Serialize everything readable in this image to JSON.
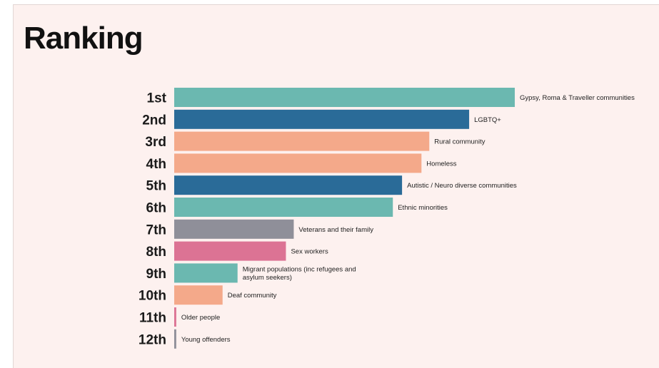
{
  "title": "Ranking",
  "chart_data": {
    "type": "bar",
    "orientation": "horizontal",
    "title": "Ranking",
    "xlabel": "",
    "ylabel": "",
    "grid": false,
    "xlim": [
      0,
      100
    ],
    "ranks": [
      "1st",
      "2nd",
      "3rd",
      "4th",
      "5th",
      "6th",
      "7th",
      "8th",
      "9th",
      "10th",
      "11th",
      "12th"
    ],
    "bars": [
      {
        "rank": "1st",
        "category": [
          "Gypsy, Roma & Traveller communities"
        ],
        "value": 100,
        "color": "#6bb8b0"
      },
      {
        "rank": "2nd",
        "category": [
          "LGBTQ+"
        ],
        "value": 86.6,
        "color": "#2a6b98"
      },
      {
        "rank": "3rd",
        "category": [
          "Rural community"
        ],
        "value": 74.9,
        "color": "#f4a98a"
      },
      {
        "rank": "4th",
        "category": [
          "Homeless"
        ],
        "value": 72.6,
        "color": "#f4a98a"
      },
      {
        "rank": "5th",
        "category": [
          "Autistic / Neuro diverse communities"
        ],
        "value": 66.9,
        "color": "#2a6b98"
      },
      {
        "rank": "6th",
        "category": [
          "Ethnic minorities"
        ],
        "value": 64.2,
        "color": "#6bb8b0"
      },
      {
        "rank": "7th",
        "category": [
          "Veterans and their family"
        ],
        "value": 35.1,
        "color": "#8f8f99"
      },
      {
        "rank": "8th",
        "category": [
          "Sex workers"
        ],
        "value": 32.8,
        "color": "#dc7394"
      },
      {
        "rank": "9th",
        "category": [
          "Migrant populations (inc refugees and",
          "asylum seekers)"
        ],
        "value": 18.6,
        "color": "#6bb8b0"
      },
      {
        "rank": "10th",
        "category": [
          "Deaf community"
        ],
        "value": 14.2,
        "color": "#f4a98a"
      },
      {
        "rank": "11th",
        "category": [
          "Older people"
        ],
        "value": 0.6,
        "color": "#dc7394"
      },
      {
        "rank": "12th",
        "category": [
          "Young offenders"
        ],
        "value": 0.6,
        "color": "#8f8f99"
      }
    ]
  }
}
